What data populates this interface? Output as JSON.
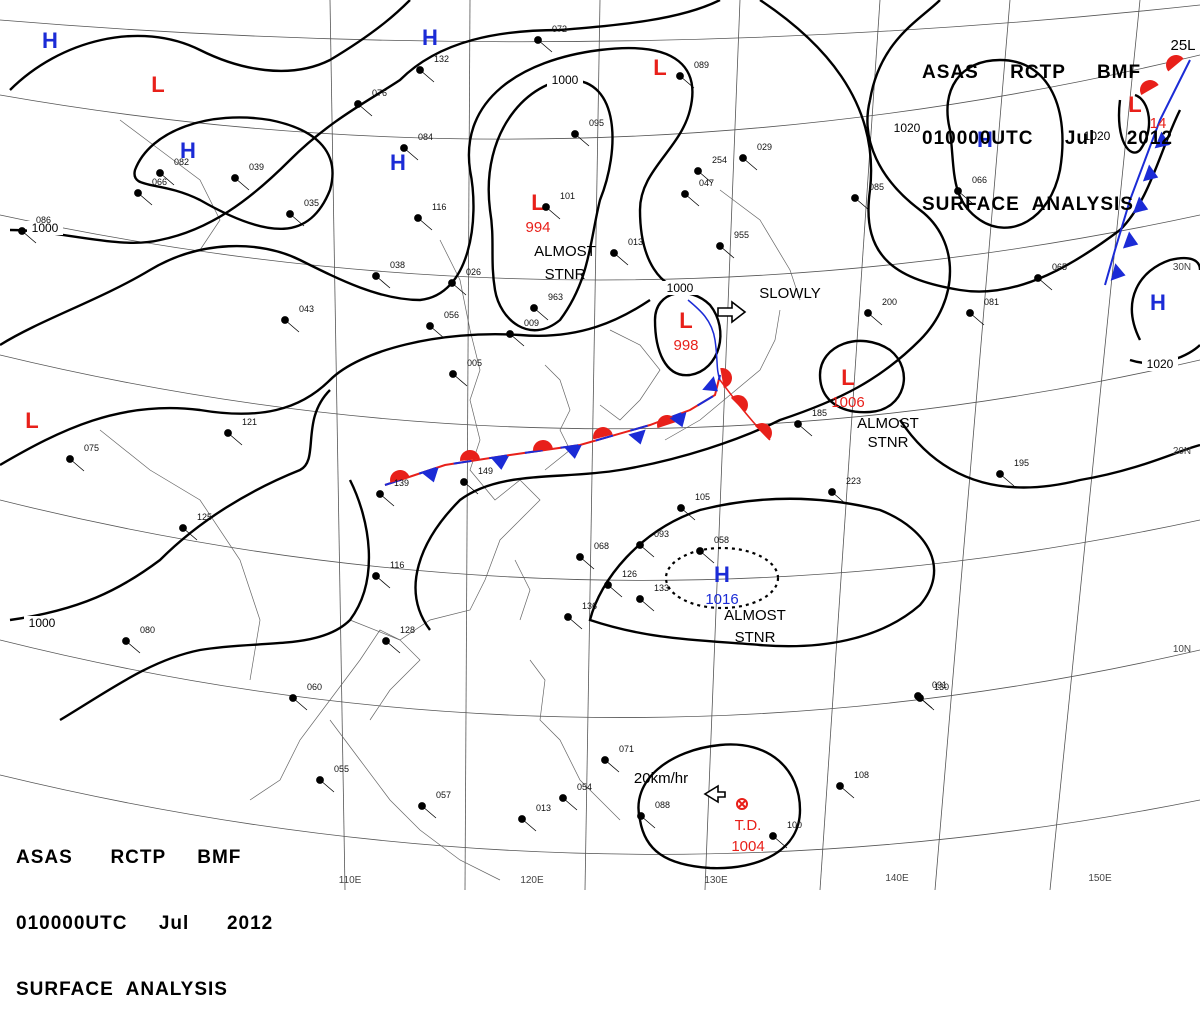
{
  "header_top_right": {
    "line1": "ASAS     RCTP     BMF",
    "line2": "010000UTC     Jul     2012",
    "line3": "SURFACE  ANALYSIS"
  },
  "header_bottom_left": {
    "line1": "ASAS      RCTP     BMF",
    "line2": "010000UTC     Jul      2012",
    "line3": "SURFACE  ANALYSIS"
  },
  "isobar_labels": [
    "1000",
    "1000",
    "1000",
    "1000",
    "1020",
    "1020",
    "1020"
  ],
  "pressure_systems": [
    {
      "type": "H",
      "value": ""
    },
    {
      "type": "H",
      "value": ""
    },
    {
      "type": "H",
      "value": ""
    },
    {
      "type": "H",
      "value": ""
    },
    {
      "type": "H",
      "value": ""
    },
    {
      "type": "H",
      "value": ""
    },
    {
      "type": "H",
      "value": "1016"
    },
    {
      "type": "L",
      "value": ""
    },
    {
      "type": "L",
      "value": ""
    },
    {
      "type": "L",
      "value": ""
    },
    {
      "type": "L",
      "value": "994"
    },
    {
      "type": "L",
      "value": "998"
    },
    {
      "type": "L",
      "value": "1006"
    },
    {
      "type": "L",
      "value": ""
    }
  ],
  "annotations": [
    "ALMOST",
    "STNR",
    "ALMOST",
    "STNR",
    "ALMOST",
    "STNR",
    "SLOWLY",
    "20km/hr",
    "T.D.",
    "1004",
    "25L",
    "14"
  ],
  "longitude_labels": [
    "110E",
    "120E",
    "130E",
    "140E",
    "150E"
  ],
  "latitude_labels": [
    "30N",
    "20N",
    "10N"
  ],
  "station_values": [
    "072",
    "132",
    "076",
    "084",
    "039",
    "066",
    "035",
    "116",
    "038",
    "026",
    "056",
    "005",
    "009",
    "029",
    "085",
    "066",
    "065",
    "081",
    "200",
    "223",
    "195",
    "185",
    "121",
    "139",
    "149",
    "105",
    "093",
    "058",
    "068",
    "126",
    "133",
    "136",
    "116",
    "128",
    "130",
    "125",
    "060",
    "055",
    "057",
    "013",
    "054",
    "071",
    "088",
    "100",
    "108",
    "091",
    "075",
    "080",
    "095",
    "101",
    "963",
    "013",
    "254",
    "047",
    "955",
    "089",
    "082",
    "086",
    "043"
  ],
  "colors": {
    "low": "#e8201a",
    "high": "#1b2bd6",
    "isobar": "#000000",
    "cold_front": "#1b2bd6",
    "warm_front": "#e8201a",
    "grid": "#444444"
  }
}
